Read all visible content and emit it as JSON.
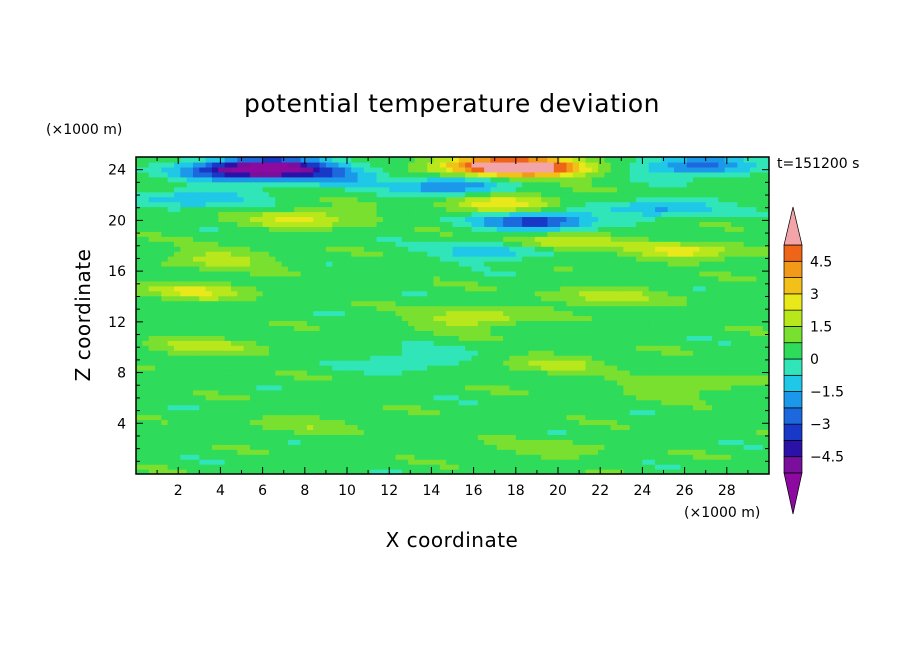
{
  "chart_data": {
    "type": "heatmap",
    "title": "potential temperature deviation",
    "xlabel": "X coordinate",
    "ylabel": "Z coordinate",
    "x_unit": "(×1000 m)",
    "y_unit": "(×1000 m)",
    "time_label": "t=151200 s",
    "xlim": [
      0,
      30
    ],
    "ylim": [
      0,
      25
    ],
    "x_ticks": [
      2,
      4,
      6,
      8,
      10,
      12,
      14,
      16,
      18,
      20,
      22,
      24,
      26,
      28
    ],
    "y_ticks": [
      4,
      8,
      12,
      16,
      20,
      24
    ],
    "colorbar": {
      "ticks": [
        "4.5",
        "3",
        "1.5",
        "0",
        "−1.5",
        "−3",
        "−4.5"
      ],
      "tick_values": [
        4.5,
        3,
        1.5,
        0,
        -1.5,
        -3,
        -4.5
      ],
      "range": [
        -5.25,
        5.25
      ],
      "levels": [
        -5.25,
        -4.5,
        -3.75,
        -3,
        -2.25,
        -1.5,
        -0.75,
        0,
        0.75,
        1.5,
        2.25,
        3,
        3.75,
        4.5,
        5.25
      ],
      "colors": [
        "#7a0f9c",
        "#2a12a8",
        "#1838c8",
        "#1c68dc",
        "#1c98ea",
        "#20c8e8",
        "#30e6b8",
        "#2edb5a",
        "#7ae030",
        "#b8e81c",
        "#e8e81a",
        "#f2c018",
        "#f29a18",
        "#ee6418",
        "#e02418"
      ],
      "under_color": "#8c0aa0",
      "over_color": "#f3a4a8"
    },
    "field_features": [
      {
        "x": 6.5,
        "z": 24.2,
        "value": -4.8
      },
      {
        "x": 4.5,
        "z": 24.0,
        "value": -3.5
      },
      {
        "x": 9.0,
        "z": 23.6,
        "value": -2.5
      },
      {
        "x": 16.5,
        "z": 24.3,
        "value": 4.2
      },
      {
        "x": 19.0,
        "z": 24.2,
        "value": 4.8
      },
      {
        "x": 15.0,
        "z": 22.8,
        "value": -3.0
      },
      {
        "x": 26.5,
        "z": 24.3,
        "value": -3.0
      },
      {
        "x": 19.0,
        "z": 20.0,
        "value": -4.0
      },
      {
        "x": 17.5,
        "z": 21.4,
        "value": 2.5
      },
      {
        "x": 8.0,
        "z": 20.2,
        "value": 2.0
      },
      {
        "x": 3.0,
        "z": 21.8,
        "value": -2.0
      },
      {
        "x": 25.0,
        "z": 21.0,
        "value": -2.0
      },
      {
        "x": 17.0,
        "z": 17.6,
        "value": -2.0
      },
      {
        "x": 20.0,
        "z": 18.3,
        "value": 2.0
      },
      {
        "x": 26.0,
        "z": 17.6,
        "value": 2.0
      },
      {
        "x": 4.0,
        "z": 17.0,
        "value": 1.5
      },
      {
        "x": 3.0,
        "z": 14.5,
        "value": 1.8
      },
      {
        "x": 22.0,
        "z": 14.0,
        "value": 1.5
      },
      {
        "x": 16.0,
        "z": 12.3,
        "value": 1.8
      },
      {
        "x": 3.0,
        "z": 10.0,
        "value": 1.5
      },
      {
        "x": 13.0,
        "z": 9.0,
        "value": -1.2
      },
      {
        "x": 26.0,
        "z": 7.0,
        "value": 1.2
      },
      {
        "x": 20.0,
        "z": 8.8,
        "value": 1.2
      },
      {
        "x": 8.0,
        "z": 4.0,
        "value": 0.8
      },
      {
        "x": 20.0,
        "z": 2.0,
        "value": 0.8
      }
    ]
  }
}
